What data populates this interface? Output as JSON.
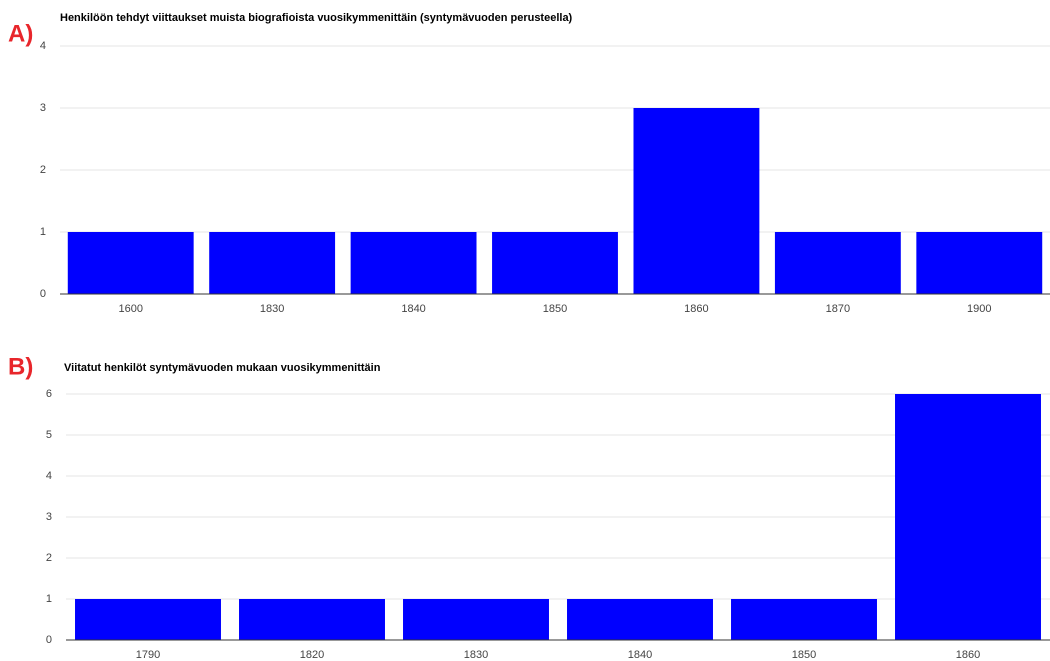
{
  "chart_data": [
    {
      "type": "bar",
      "panel_label": "A)",
      "title": "Henkilöön tehdyt viittaukset muista biografioista vuosikymmenittäin (syntymävuoden perusteella)",
      "categories": [
        "1600",
        "1830",
        "1840",
        "1850",
        "1860",
        "1870",
        "1900"
      ],
      "values": [
        1,
        1,
        1,
        1,
        3,
        1,
        1
      ],
      "color": "#0000ff",
      "ylim": [
        0,
        4
      ],
      "yticks": [
        0,
        1,
        2,
        3,
        4
      ],
      "grid": true
    },
    {
      "type": "bar",
      "panel_label": "B)",
      "title": "Viitatut henkilöt syntymävuoden mukaan vuosikymmenittäin",
      "categories": [
        "1790",
        "1820",
        "1830",
        "1840",
        "1850",
        "1860"
      ],
      "values": [
        1,
        1,
        1,
        1,
        1,
        6
      ],
      "color": "#0000ff",
      "ylim": [
        0,
        6
      ],
      "yticks": [
        0,
        1,
        2,
        3,
        4,
        5,
        6
      ],
      "grid": true
    }
  ]
}
